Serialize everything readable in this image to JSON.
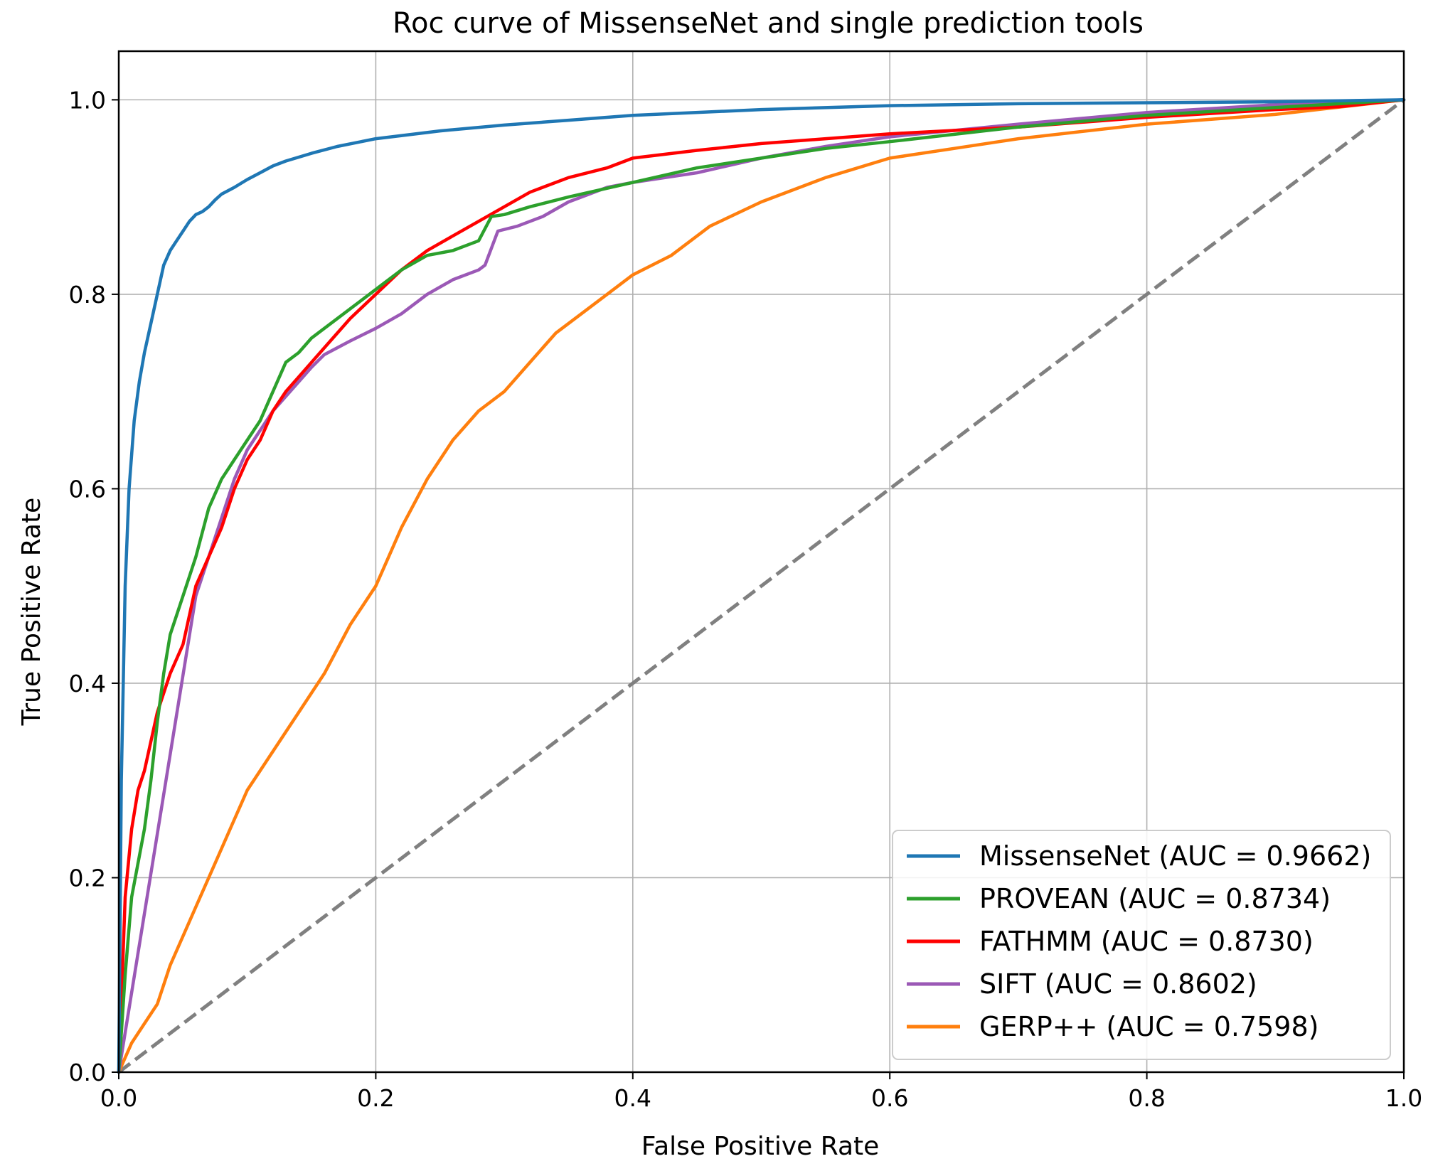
{
  "chart_data": {
    "type": "line",
    "title": "Roc curve of MissenseNet and single prediction tools",
    "xlabel": "False Positive Rate",
    "ylabel": "True Positive Rate",
    "xlim": [
      0.0,
      1.0
    ],
    "ylim": [
      0.0,
      1.05
    ],
    "xticks": [
      "0.0",
      "0.2",
      "0.4",
      "0.6",
      "0.8",
      "1.0"
    ],
    "yticks": [
      "0.0",
      "0.2",
      "0.4",
      "0.6",
      "0.8",
      "1.0"
    ],
    "grid": true,
    "legend_position": "lower-right",
    "reference_line": {
      "x": [
        0,
        1
      ],
      "y": [
        0,
        1
      ],
      "color": "#808080",
      "style": "dashed"
    },
    "series": [
      {
        "name": "MissenseNet (AUC = 0.9662)",
        "color": "#1f77b4",
        "x": [
          0,
          0.002,
          0.005,
          0.008,
          0.012,
          0.016,
          0.02,
          0.025,
          0.03,
          0.035,
          0.04,
          0.045,
          0.05,
          0.055,
          0.06,
          0.065,
          0.07,
          0.075,
          0.08,
          0.09,
          0.1,
          0.11,
          0.12,
          0.13,
          0.15,
          0.17,
          0.2,
          0.25,
          0.3,
          0.35,
          0.4,
          0.5,
          0.6,
          0.7,
          0.8,
          0.9,
          1.0
        ],
        "y": [
          0,
          0.3,
          0.5,
          0.6,
          0.67,
          0.71,
          0.74,
          0.77,
          0.8,
          0.83,
          0.845,
          0.855,
          0.865,
          0.875,
          0.882,
          0.885,
          0.89,
          0.897,
          0.903,
          0.91,
          0.918,
          0.925,
          0.932,
          0.937,
          0.945,
          0.952,
          0.96,
          0.968,
          0.974,
          0.979,
          0.984,
          0.99,
          0.994,
          0.996,
          0.997,
          0.998,
          1.0
        ]
      },
      {
        "name": "PROVEAN (AUC = 0.8734)",
        "color": "#2ca02c",
        "x": [
          0,
          0.005,
          0.01,
          0.02,
          0.025,
          0.03,
          0.035,
          0.04,
          0.05,
          0.06,
          0.07,
          0.08,
          0.09,
          0.1,
          0.11,
          0.12,
          0.13,
          0.14,
          0.15,
          0.16,
          0.18,
          0.2,
          0.22,
          0.24,
          0.26,
          0.28,
          0.29,
          0.3,
          0.32,
          0.35,
          0.4,
          0.45,
          0.5,
          0.55,
          0.6,
          0.7,
          0.8,
          0.9,
          1.0
        ],
        "y": [
          0,
          0.1,
          0.18,
          0.25,
          0.3,
          0.36,
          0.41,
          0.45,
          0.49,
          0.53,
          0.58,
          0.61,
          0.63,
          0.65,
          0.67,
          0.7,
          0.73,
          0.74,
          0.755,
          0.765,
          0.785,
          0.805,
          0.825,
          0.84,
          0.845,
          0.855,
          0.88,
          0.882,
          0.89,
          0.9,
          0.915,
          0.93,
          0.94,
          0.95,
          0.957,
          0.972,
          0.984,
          0.992,
          1.0
        ]
      },
      {
        "name": "FATHMM (AUC = 0.8730)",
        "color": "#ff0000",
        "x": [
          0,
          0.005,
          0.01,
          0.015,
          0.02,
          0.03,
          0.04,
          0.05,
          0.06,
          0.07,
          0.08,
          0.09,
          0.1,
          0.11,
          0.12,
          0.13,
          0.14,
          0.15,
          0.16,
          0.18,
          0.2,
          0.22,
          0.24,
          0.26,
          0.28,
          0.3,
          0.32,
          0.35,
          0.38,
          0.4,
          0.45,
          0.5,
          0.55,
          0.6,
          0.7,
          0.8,
          0.9,
          0.95,
          1.0
        ],
        "y": [
          0,
          0.18,
          0.25,
          0.29,
          0.31,
          0.37,
          0.41,
          0.44,
          0.5,
          0.53,
          0.56,
          0.6,
          0.63,
          0.65,
          0.68,
          0.7,
          0.715,
          0.73,
          0.745,
          0.775,
          0.8,
          0.825,
          0.845,
          0.86,
          0.875,
          0.89,
          0.905,
          0.92,
          0.93,
          0.94,
          0.948,
          0.955,
          0.96,
          0.965,
          0.972,
          0.982,
          0.99,
          0.993,
          1.0
        ]
      },
      {
        "name": "SIFT (AUC = 0.8602)",
        "color": "#9b59b6",
        "x": [
          0,
          0.06,
          0.07,
          0.08,
          0.09,
          0.1,
          0.11,
          0.12,
          0.13,
          0.14,
          0.15,
          0.16,
          0.18,
          0.2,
          0.22,
          0.24,
          0.26,
          0.28,
          0.285,
          0.295,
          0.31,
          0.33,
          0.35,
          0.38,
          0.4,
          0.45,
          0.5,
          0.55,
          0.6,
          0.7,
          0.8,
          0.9,
          1.0
        ],
        "y": [
          0,
          0.49,
          0.53,
          0.57,
          0.61,
          0.64,
          0.66,
          0.68,
          0.695,
          0.71,
          0.725,
          0.738,
          0.752,
          0.765,
          0.78,
          0.8,
          0.815,
          0.825,
          0.83,
          0.865,
          0.87,
          0.88,
          0.895,
          0.91,
          0.915,
          0.925,
          0.94,
          0.952,
          0.962,
          0.975,
          0.987,
          0.995,
          1.0
        ]
      },
      {
        "name": "GERP++ (AUC = 0.7598)",
        "color": "#ff7f0e",
        "x": [
          0,
          0.01,
          0.02,
          0.03,
          0.04,
          0.05,
          0.06,
          0.07,
          0.08,
          0.09,
          0.1,
          0.11,
          0.12,
          0.14,
          0.16,
          0.18,
          0.2,
          0.21,
          0.22,
          0.24,
          0.26,
          0.28,
          0.3,
          0.32,
          0.34,
          0.36,
          0.38,
          0.4,
          0.43,
          0.46,
          0.5,
          0.55,
          0.6,
          0.65,
          0.7,
          0.8,
          0.9,
          1.0
        ],
        "y": [
          0,
          0.03,
          0.05,
          0.07,
          0.11,
          0.14,
          0.17,
          0.2,
          0.23,
          0.26,
          0.29,
          0.31,
          0.33,
          0.37,
          0.41,
          0.46,
          0.5,
          0.53,
          0.56,
          0.61,
          0.65,
          0.68,
          0.7,
          0.73,
          0.76,
          0.78,
          0.8,
          0.82,
          0.84,
          0.87,
          0.895,
          0.92,
          0.94,
          0.95,
          0.96,
          0.975,
          0.985,
          1.0
        ]
      }
    ]
  }
}
